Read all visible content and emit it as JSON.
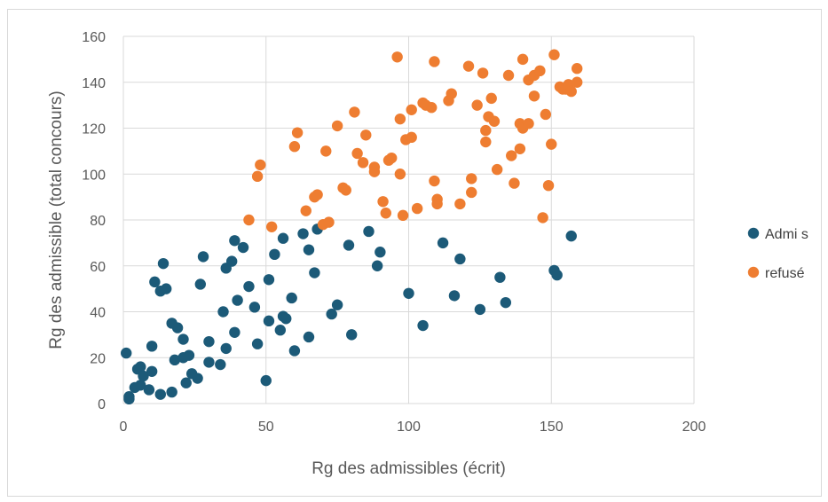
{
  "chart_data": {
    "type": "scatter",
    "title": "",
    "xlabel": "Rg des admissibles (écrit)",
    "ylabel": "Rg des admissible (total concours)",
    "xlim": [
      0,
      200
    ],
    "ylim": [
      0,
      160
    ],
    "xticks": [
      0,
      50,
      100,
      150,
      200
    ],
    "yticks": [
      0,
      20,
      40,
      60,
      80,
      100,
      120,
      140,
      160
    ],
    "grid": true,
    "legend_position": "right",
    "series": [
      {
        "name": "Admi s",
        "color": "#1c5a78",
        "points": [
          [
            1,
            22
          ],
          [
            2,
            3
          ],
          [
            2,
            2
          ],
          [
            4,
            7
          ],
          [
            5,
            15
          ],
          [
            6,
            8
          ],
          [
            6,
            16
          ],
          [
            7,
            12
          ],
          [
            9,
            6
          ],
          [
            10,
            25
          ],
          [
            10,
            14
          ],
          [
            11,
            53
          ],
          [
            13,
            4
          ],
          [
            13,
            49
          ],
          [
            14,
            61
          ],
          [
            15,
            50
          ],
          [
            17,
            35
          ],
          [
            17,
            5
          ],
          [
            18,
            19
          ],
          [
            19,
            33
          ],
          [
            21,
            28
          ],
          [
            21,
            20
          ],
          [
            22,
            9
          ],
          [
            23,
            21
          ],
          [
            24,
            13
          ],
          [
            26,
            11
          ],
          [
            27,
            52
          ],
          [
            28,
            64
          ],
          [
            30,
            18
          ],
          [
            30,
            27
          ],
          [
            34,
            17
          ],
          [
            35,
            40
          ],
          [
            36,
            24
          ],
          [
            36,
            59
          ],
          [
            38,
            62
          ],
          [
            39,
            31
          ],
          [
            39,
            71
          ],
          [
            40,
            45
          ],
          [
            42,
            68
          ],
          [
            44,
            51
          ],
          [
            46,
            42
          ],
          [
            47,
            26
          ],
          [
            50,
            10
          ],
          [
            51,
            54
          ],
          [
            51,
            36
          ],
          [
            53,
            65
          ],
          [
            55,
            32
          ],
          [
            56,
            38
          ],
          [
            56,
            72
          ],
          [
            57,
            37
          ],
          [
            59,
            46
          ],
          [
            60,
            23
          ],
          [
            63,
            74
          ],
          [
            65,
            29
          ],
          [
            65,
            67
          ],
          [
            67,
            57
          ],
          [
            68,
            76
          ],
          [
            73,
            39
          ],
          [
            75,
            43
          ],
          [
            79,
            69
          ],
          [
            80,
            30
          ],
          [
            86,
            75
          ],
          [
            89,
            60
          ],
          [
            90,
            66
          ],
          [
            100,
            48
          ],
          [
            105,
            34
          ],
          [
            112,
            70
          ],
          [
            116,
            47
          ],
          [
            118,
            63
          ],
          [
            125,
            41
          ],
          [
            132,
            55
          ],
          [
            134,
            44
          ],
          [
            151,
            58
          ],
          [
            152,
            56
          ],
          [
            157,
            73
          ]
        ]
      },
      {
        "name": "refusé",
        "color": "#ee7d31",
        "points": [
          [
            44,
            80
          ],
          [
            47,
            99
          ],
          [
            48,
            104
          ],
          [
            52,
            77
          ],
          [
            60,
            112
          ],
          [
            61,
            118
          ],
          [
            64,
            84
          ],
          [
            67,
            90
          ],
          [
            68,
            91
          ],
          [
            70,
            78
          ],
          [
            71,
            110
          ],
          [
            72,
            79
          ],
          [
            75,
            121
          ],
          [
            77,
            94
          ],
          [
            78,
            93
          ],
          [
            81,
            127
          ],
          [
            82,
            109
          ],
          [
            84,
            105
          ],
          [
            85,
            117
          ],
          [
            88,
            101
          ],
          [
            88,
            103
          ],
          [
            91,
            88
          ],
          [
            92,
            83
          ],
          [
            93,
            106
          ],
          [
            94,
            107
          ],
          [
            96,
            151
          ],
          [
            97,
            100
          ],
          [
            97,
            124
          ],
          [
            98,
            82
          ],
          [
            99,
            115
          ],
          [
            101,
            128
          ],
          [
            101,
            116
          ],
          [
            103,
            85
          ],
          [
            105,
            131
          ],
          [
            106,
            130
          ],
          [
            108,
            129
          ],
          [
            109,
            149
          ],
          [
            109,
            97
          ],
          [
            110,
            89
          ],
          [
            110,
            87
          ],
          [
            114,
            132
          ],
          [
            115,
            135
          ],
          [
            118,
            87
          ],
          [
            121,
            147
          ],
          [
            122,
            92
          ],
          [
            122,
            98
          ],
          [
            124,
            130
          ],
          [
            126,
            144
          ],
          [
            127,
            114
          ],
          [
            127,
            119
          ],
          [
            128,
            125
          ],
          [
            129,
            133
          ],
          [
            130,
            123
          ],
          [
            131,
            102
          ],
          [
            135,
            143
          ],
          [
            136,
            108
          ],
          [
            137,
            96
          ],
          [
            139,
            111
          ],
          [
            139,
            122
          ],
          [
            140,
            120
          ],
          [
            140,
            150
          ],
          [
            142,
            122
          ],
          [
            142,
            141
          ],
          [
            144,
            134
          ],
          [
            144,
            143
          ],
          [
            146,
            145
          ],
          [
            147,
            81
          ],
          [
            148,
            126
          ],
          [
            149,
            95
          ],
          [
            150,
            113
          ],
          [
            151,
            152
          ],
          [
            153,
            138
          ],
          [
            154,
            137
          ],
          [
            155,
            137
          ],
          [
            156,
            139
          ],
          [
            157,
            136
          ],
          [
            159,
            140
          ],
          [
            159,
            146
          ]
        ]
      }
    ]
  }
}
